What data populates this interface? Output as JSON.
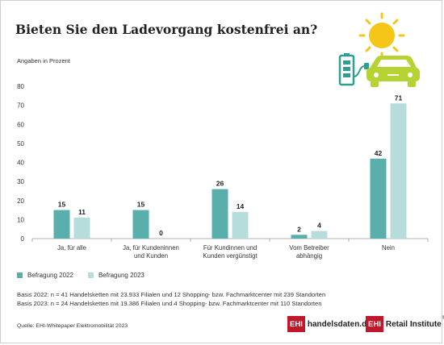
{
  "title": "Bieten Sie den Ladevorgang kostenfrei an?",
  "subtitle": "Angaben in Prozent",
  "colors": {
    "series_2022": "#5aafad",
    "series_2023": "#b6dcdb",
    "sun": "#f5c518",
    "car": "#b5d433",
    "battery": "#2c9f95"
  },
  "icons": [
    "sun-icon",
    "battery-icon",
    "plug-icon",
    "car-icon"
  ],
  "chart_data": {
    "type": "bar",
    "categories": [
      "Ja, für alle",
      "Ja, für Kundeninnen und Kunden",
      "Für Kundinnen und Kunden vergünstigt",
      "Vom Betreiber abhängig",
      "Nein"
    ],
    "category_lines": [
      [
        "Ja, für alle"
      ],
      [
        "Ja, für Kundeninnen",
        "und Kunden"
      ],
      [
        "Für Kundinnen und",
        "Kunden vergünstigt"
      ],
      [
        "Vom Betreiber",
        "abhängig"
      ],
      [
        "Nein"
      ]
    ],
    "series": [
      {
        "name": "Befragung 2022",
        "values": [
          15,
          15,
          26,
          2,
          42
        ]
      },
      {
        "name": "Befragung 2023",
        "values": [
          11,
          0,
          14,
          4,
          71
        ]
      }
    ],
    "ylim": [
      0,
      80
    ],
    "yticks": [
      0,
      10,
      20,
      30,
      40,
      50,
      60,
      70,
      80
    ],
    "grid": false,
    "legend_position": "bottom-left"
  },
  "legend": [
    {
      "label": "Befragung 2022"
    },
    {
      "label": "Befragung 2023"
    }
  ],
  "basis": {
    "line1": "Basis 2022: n = 41 Handelsketten mit 23.933 Filialen und 12 Shopping- bzw. Fachmarktcenter mit 239 Standorten",
    "line2": "Basis 2023: n = 24 Handelsketten mit 19.386 Filialen und 4 Shopping- bzw. Fachmarktcenter mit 110 Standorten"
  },
  "source": "Quelle: EHI-Whitepaper Elektromobilität 2023",
  "logos": {
    "left_box": "EHI",
    "left_text": "handelsdaten.de",
    "right_box": "EHI",
    "right_text_bold": "Retail Institute",
    "right_mark": "®"
  }
}
